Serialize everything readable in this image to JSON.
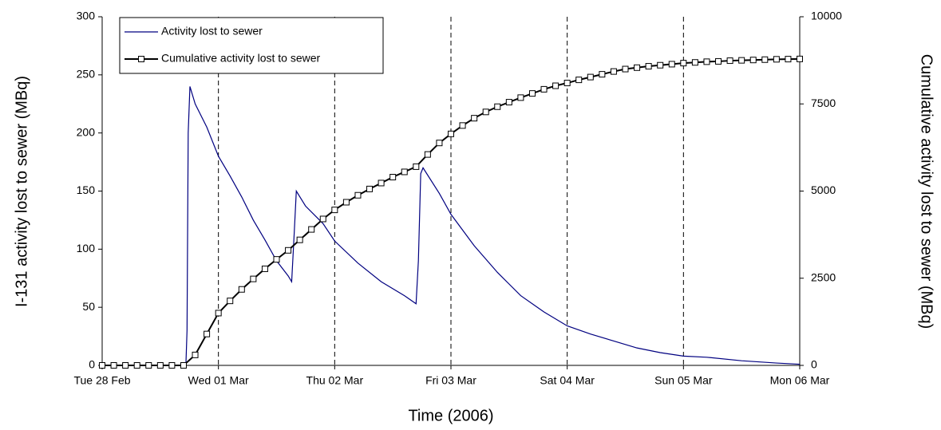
{
  "chart_data": {
    "type": "line",
    "xlabel": "Time (2006)",
    "ylabel": "I-131 activity lost to sewer (MBq)",
    "y2label": "Cumulative activity lost to sewer (MBq)",
    "xlim": [
      0,
      6
    ],
    "xticks": [
      {
        "value": 0,
        "label": "Tue 28 Feb"
      },
      {
        "value": 1,
        "label": "Wed 01 Mar"
      },
      {
        "value": 2,
        "label": "Thu 02 Mar"
      },
      {
        "value": 3,
        "label": "Fri 03 Mar"
      },
      {
        "value": 4,
        "label": "Sat 04 Mar"
      },
      {
        "value": 5,
        "label": "Sun 05 Mar"
      },
      {
        "value": 6,
        "label": "Mon 06 Mar"
      }
    ],
    "ylim": [
      0,
      300
    ],
    "yticks": [
      0,
      50,
      100,
      150,
      200,
      250,
      300
    ],
    "y2lim": [
      0,
      10000
    ],
    "y2ticks": [
      0,
      2500,
      5000,
      7500,
      10000
    ],
    "grid": "x-dashed",
    "legend": "top-left",
    "series": [
      {
        "name": "Activity lost to sewer",
        "color": "#000080",
        "marker": "none",
        "x": [
          0,
          0.5,
          0.72,
          0.73,
          0.74,
          0.755,
          0.8,
          0.9,
          1.0,
          1.1,
          1.2,
          1.3,
          1.4,
          1.5,
          1.6,
          1.63,
          1.65,
          1.67,
          1.75,
          1.9,
          2.0,
          2.2,
          2.4,
          2.6,
          2.7,
          2.72,
          2.74,
          2.76,
          2.9,
          3.0,
          3.2,
          3.4,
          3.6,
          3.8,
          4.0,
          4.2,
          4.4,
          4.6,
          4.8,
          5.0,
          5.2,
          5.5,
          5.8,
          6.0
        ],
        "values": [
          0,
          0,
          0,
          30,
          200,
          240,
          225,
          205,
          180,
          163,
          145,
          125,
          108,
          90,
          77,
          72,
          110,
          150,
          137,
          122,
          107,
          88,
          72,
          60,
          53,
          90,
          165,
          170,
          148,
          130,
          103,
          80,
          60,
          46,
          34,
          27,
          21,
          15,
          11,
          8,
          7,
          4,
          2,
          1
        ]
      },
      {
        "name": "Cumulative activity lost to sewer",
        "color": "#000000",
        "marker": "square",
        "axis": "y2",
        "x": [
          0,
          0.1,
          0.2,
          0.3,
          0.4,
          0.5,
          0.6,
          0.7,
          0.8,
          0.9,
          1.0,
          1.1,
          1.2,
          1.3,
          1.4,
          1.5,
          1.6,
          1.7,
          1.8,
          1.9,
          2.0,
          2.1,
          2.2,
          2.3,
          2.4,
          2.5,
          2.6,
          2.7,
          2.8,
          2.9,
          3.0,
          3.1,
          3.2,
          3.3,
          3.4,
          3.5,
          3.6,
          3.7,
          3.8,
          3.9,
          4.0,
          4.1,
          4.2,
          4.3,
          4.4,
          4.5,
          4.6,
          4.7,
          4.8,
          4.9,
          5.0,
          5.1,
          5.2,
          5.3,
          5.4,
          5.5,
          5.6,
          5.7,
          5.8,
          5.9,
          6.0
        ],
        "values": [
          0,
          0,
          0,
          0,
          0,
          0,
          0,
          0,
          300,
          900,
          1500,
          1850,
          2180,
          2480,
          2770,
          3040,
          3300,
          3600,
          3900,
          4200,
          4460,
          4680,
          4880,
          5060,
          5230,
          5400,
          5550,
          5700,
          6050,
          6380,
          6640,
          6880,
          7090,
          7270,
          7420,
          7550,
          7680,
          7800,
          7920,
          8020,
          8100,
          8190,
          8270,
          8350,
          8430,
          8500,
          8540,
          8580,
          8610,
          8640,
          8670,
          8690,
          8710,
          8720,
          8740,
          8750,
          8760,
          8770,
          8780,
          8785,
          8790
        ]
      }
    ]
  }
}
